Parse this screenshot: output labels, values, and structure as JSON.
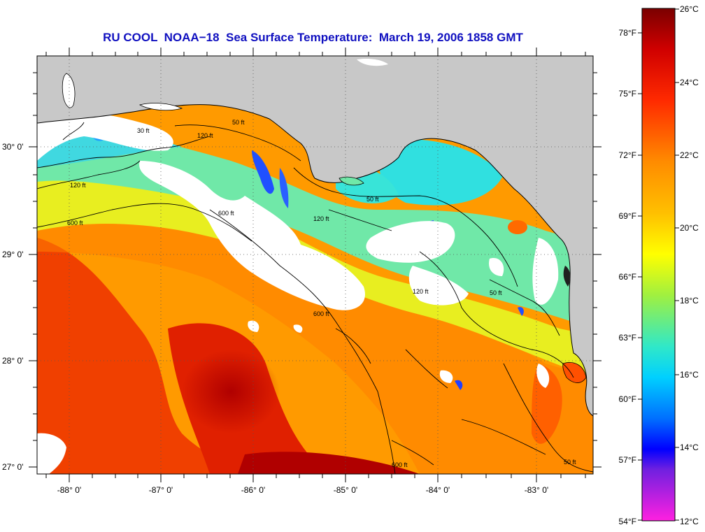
{
  "title": "RU COOL  NOAA−18  Sea Surface Temperature:  March 19, 2006 1858 GMT",
  "map": {
    "lon_labels": [
      "-88° 0'",
      "-87° 0'",
      "-86° 0'",
      "-85° 0'",
      "-84° 0'",
      "-83° 0'"
    ],
    "lat_labels": [
      "30° 0'",
      "29° 0'",
      "28° 0'",
      "27° 0'"
    ],
    "contour_labels": [
      "120 ft",
      "50 ft",
      "50 ft",
      "600 ft",
      "600 ft",
      "120 ft",
      "120 ft",
      "50 ft",
      "600 ft",
      "50 ft",
      "600 ft",
      "120 ft",
      "30 ft"
    ],
    "colors": {
      "land": "#c8c8c8",
      "cloud": "#ffffff",
      "coast": "#000000"
    }
  },
  "colorbar": {
    "celsius_labels": [
      "26°C",
      "24°C",
      "22°C",
      "20°C",
      "18°C",
      "16°C",
      "14°C",
      "12°C"
    ],
    "fahrenheit_labels": [
      "78°F",
      "75°F",
      "72°F",
      "69°F",
      "66°F",
      "63°F",
      "60°F",
      "57°F",
      "54°F"
    ],
    "gradient": [
      "#8b0000",
      "#e00000",
      "#ff3000",
      "#ff8c00",
      "#ffc000",
      "#ffff00",
      "#90f040",
      "#30e0d0",
      "#00c0ff",
      "#0060ff",
      "#0000ff",
      "#8020e0",
      "#ff20e0"
    ]
  }
}
